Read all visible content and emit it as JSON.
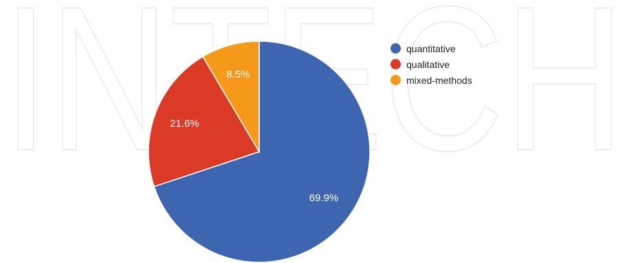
{
  "watermark": {
    "text": "INTECH",
    "color": "#e6e6e6"
  },
  "chart_data": {
    "type": "pie",
    "title": "",
    "start_angle_deg": 0,
    "direction": "clockwise",
    "legend_position": "right",
    "slices": [
      {
        "name": "quantitative",
        "value": 69.9,
        "label": "69.9%",
        "color": "#3d65b0"
      },
      {
        "name": "qualitative",
        "value": 21.6,
        "label": "21.6%",
        "color": "#db3b26"
      },
      {
        "name": "mixed-methods",
        "value": 8.5,
        "label": "8.5%",
        "color": "#f6991b"
      }
    ]
  }
}
